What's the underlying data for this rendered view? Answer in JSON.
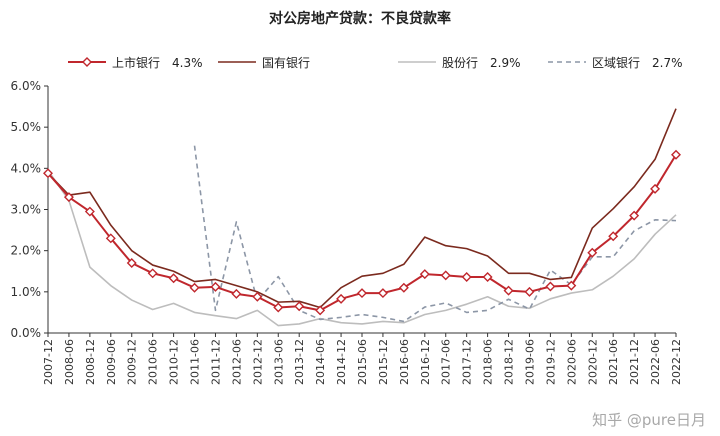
{
  "chart_data": {
    "type": "line",
    "title": "对公房地产贷款：不良贷款率",
    "xlabel": "",
    "ylabel": "",
    "ylim": [
      0,
      6
    ],
    "y_ticks": [
      "0.0%",
      "1.0%",
      "2.0%",
      "3.0%",
      "4.0%",
      "5.0%",
      "6.0%"
    ],
    "grid": false,
    "legend_position": "top",
    "x": [
      "2007-12",
      "2008-06",
      "2008-12",
      "2009-06",
      "2009-12",
      "2010-06",
      "2010-12",
      "2011-06",
      "2011-12",
      "2012-06",
      "2012-12",
      "2013-06",
      "2013-12",
      "2014-06",
      "2014-12",
      "2015-06",
      "2015-12",
      "2016-06",
      "2016-12",
      "2017-06",
      "2017-12",
      "2018-06",
      "2018-12",
      "2019-06",
      "2019-12",
      "2020-06",
      "2020-12",
      "2021-06",
      "2021-12",
      "2022-06",
      "2022-12"
    ],
    "series": [
      {
        "name": "上市银行",
        "legend_value": "4.3%",
        "color": "#c0272d",
        "style": "line-diamond",
        "values": [
          3.88,
          3.3,
          2.95,
          2.3,
          1.7,
          1.45,
          1.33,
          1.1,
          1.12,
          0.95,
          0.88,
          0.62,
          0.65,
          0.55,
          0.83,
          0.97,
          0.97,
          1.1,
          1.43,
          1.4,
          1.36,
          1.36,
          1.03,
          1.0,
          1.13,
          1.15,
          1.95,
          2.35,
          2.85,
          3.5,
          4.33
        ]
      },
      {
        "name": "国有银行",
        "legend_value": "",
        "color": "#7b2a1e",
        "style": "solid",
        "values": [
          3.88,
          3.35,
          3.42,
          2.62,
          2.0,
          1.65,
          1.5,
          1.25,
          1.3,
          1.15,
          1.0,
          0.75,
          0.77,
          0.62,
          1.1,
          1.38,
          1.45,
          1.67,
          2.33,
          2.12,
          2.05,
          1.87,
          1.45,
          1.45,
          1.3,
          1.35,
          2.55,
          3.02,
          3.55,
          4.22,
          5.45
        ]
      },
      {
        "name": "股份行",
        "legend_value": "2.9%",
        "color": "#bdbdbd",
        "style": "solid",
        "values": [
          3.95,
          3.22,
          1.6,
          1.15,
          0.8,
          0.57,
          0.72,
          0.5,
          0.42,
          0.35,
          0.55,
          0.18,
          0.22,
          0.35,
          0.25,
          0.22,
          0.28,
          0.25,
          0.45,
          0.55,
          0.7,
          0.88,
          0.65,
          0.6,
          0.83,
          0.97,
          1.05,
          1.38,
          1.8,
          2.4,
          2.87
        ]
      },
      {
        "name": "区域银行",
        "legend_value": "2.7%",
        "color": "#8c96a6",
        "style": "dashed",
        "values": [
          null,
          null,
          null,
          null,
          null,
          null,
          null,
          4.55,
          0.55,
          2.7,
          0.78,
          1.37,
          0.55,
          0.33,
          0.38,
          0.45,
          0.38,
          0.28,
          0.63,
          0.73,
          0.5,
          0.55,
          0.82,
          0.58,
          1.53,
          1.17,
          1.85,
          1.85,
          2.48,
          2.75,
          2.73
        ]
      }
    ]
  },
  "watermark": "知乎 @pure日月"
}
